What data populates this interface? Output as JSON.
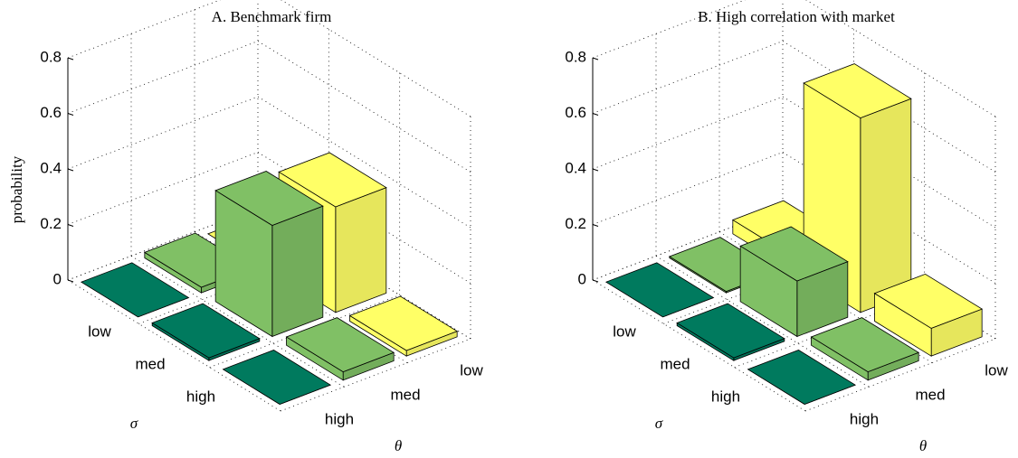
{
  "chart_data": [
    {
      "type": "bar3d",
      "title": "A.  Benchmark firm",
      "zlabel": "probability",
      "xlabel": "σ",
      "ylabel": "θ",
      "x_categories": [
        "low",
        "med",
        "high"
      ],
      "y_categories": [
        "high",
        "med",
        "low"
      ],
      "series": [
        {
          "color": "#007a5e",
          "values": [
            0,
            0.01,
            0
          ]
        },
        {
          "color": "#80c065",
          "values": [
            0.02,
            0.4,
            0.03
          ]
        },
        {
          "color": "#ffff66",
          "values": [
            0,
            0.38,
            0.02
          ]
        }
      ],
      "zlim": [
        0,
        0.8
      ],
      "zticks": [
        0,
        0.2,
        0.4,
        0.6,
        0.8
      ],
      "grid": true
    },
    {
      "type": "bar3d",
      "title": "B.  High correlation with market",
      "xlabel": "σ",
      "ylabel": "θ",
      "x_categories": [
        "low",
        "med",
        "high"
      ],
      "y_categories": [
        "high",
        "med",
        "low"
      ],
      "series": [
        {
          "color": "#007a5e",
          "values": [
            0,
            0.01,
            0
          ]
        },
        {
          "color": "#80c065",
          "values": [
            0.005,
            0.2,
            0.03
          ]
        },
        {
          "color": "#ffff66",
          "values": [
            0.05,
            0.7,
            0.1
          ]
        }
      ],
      "zlim": [
        0,
        0.8
      ],
      "zticks": [
        0,
        0.2,
        0.4,
        0.6,
        0.8
      ],
      "grid": true
    }
  ]
}
